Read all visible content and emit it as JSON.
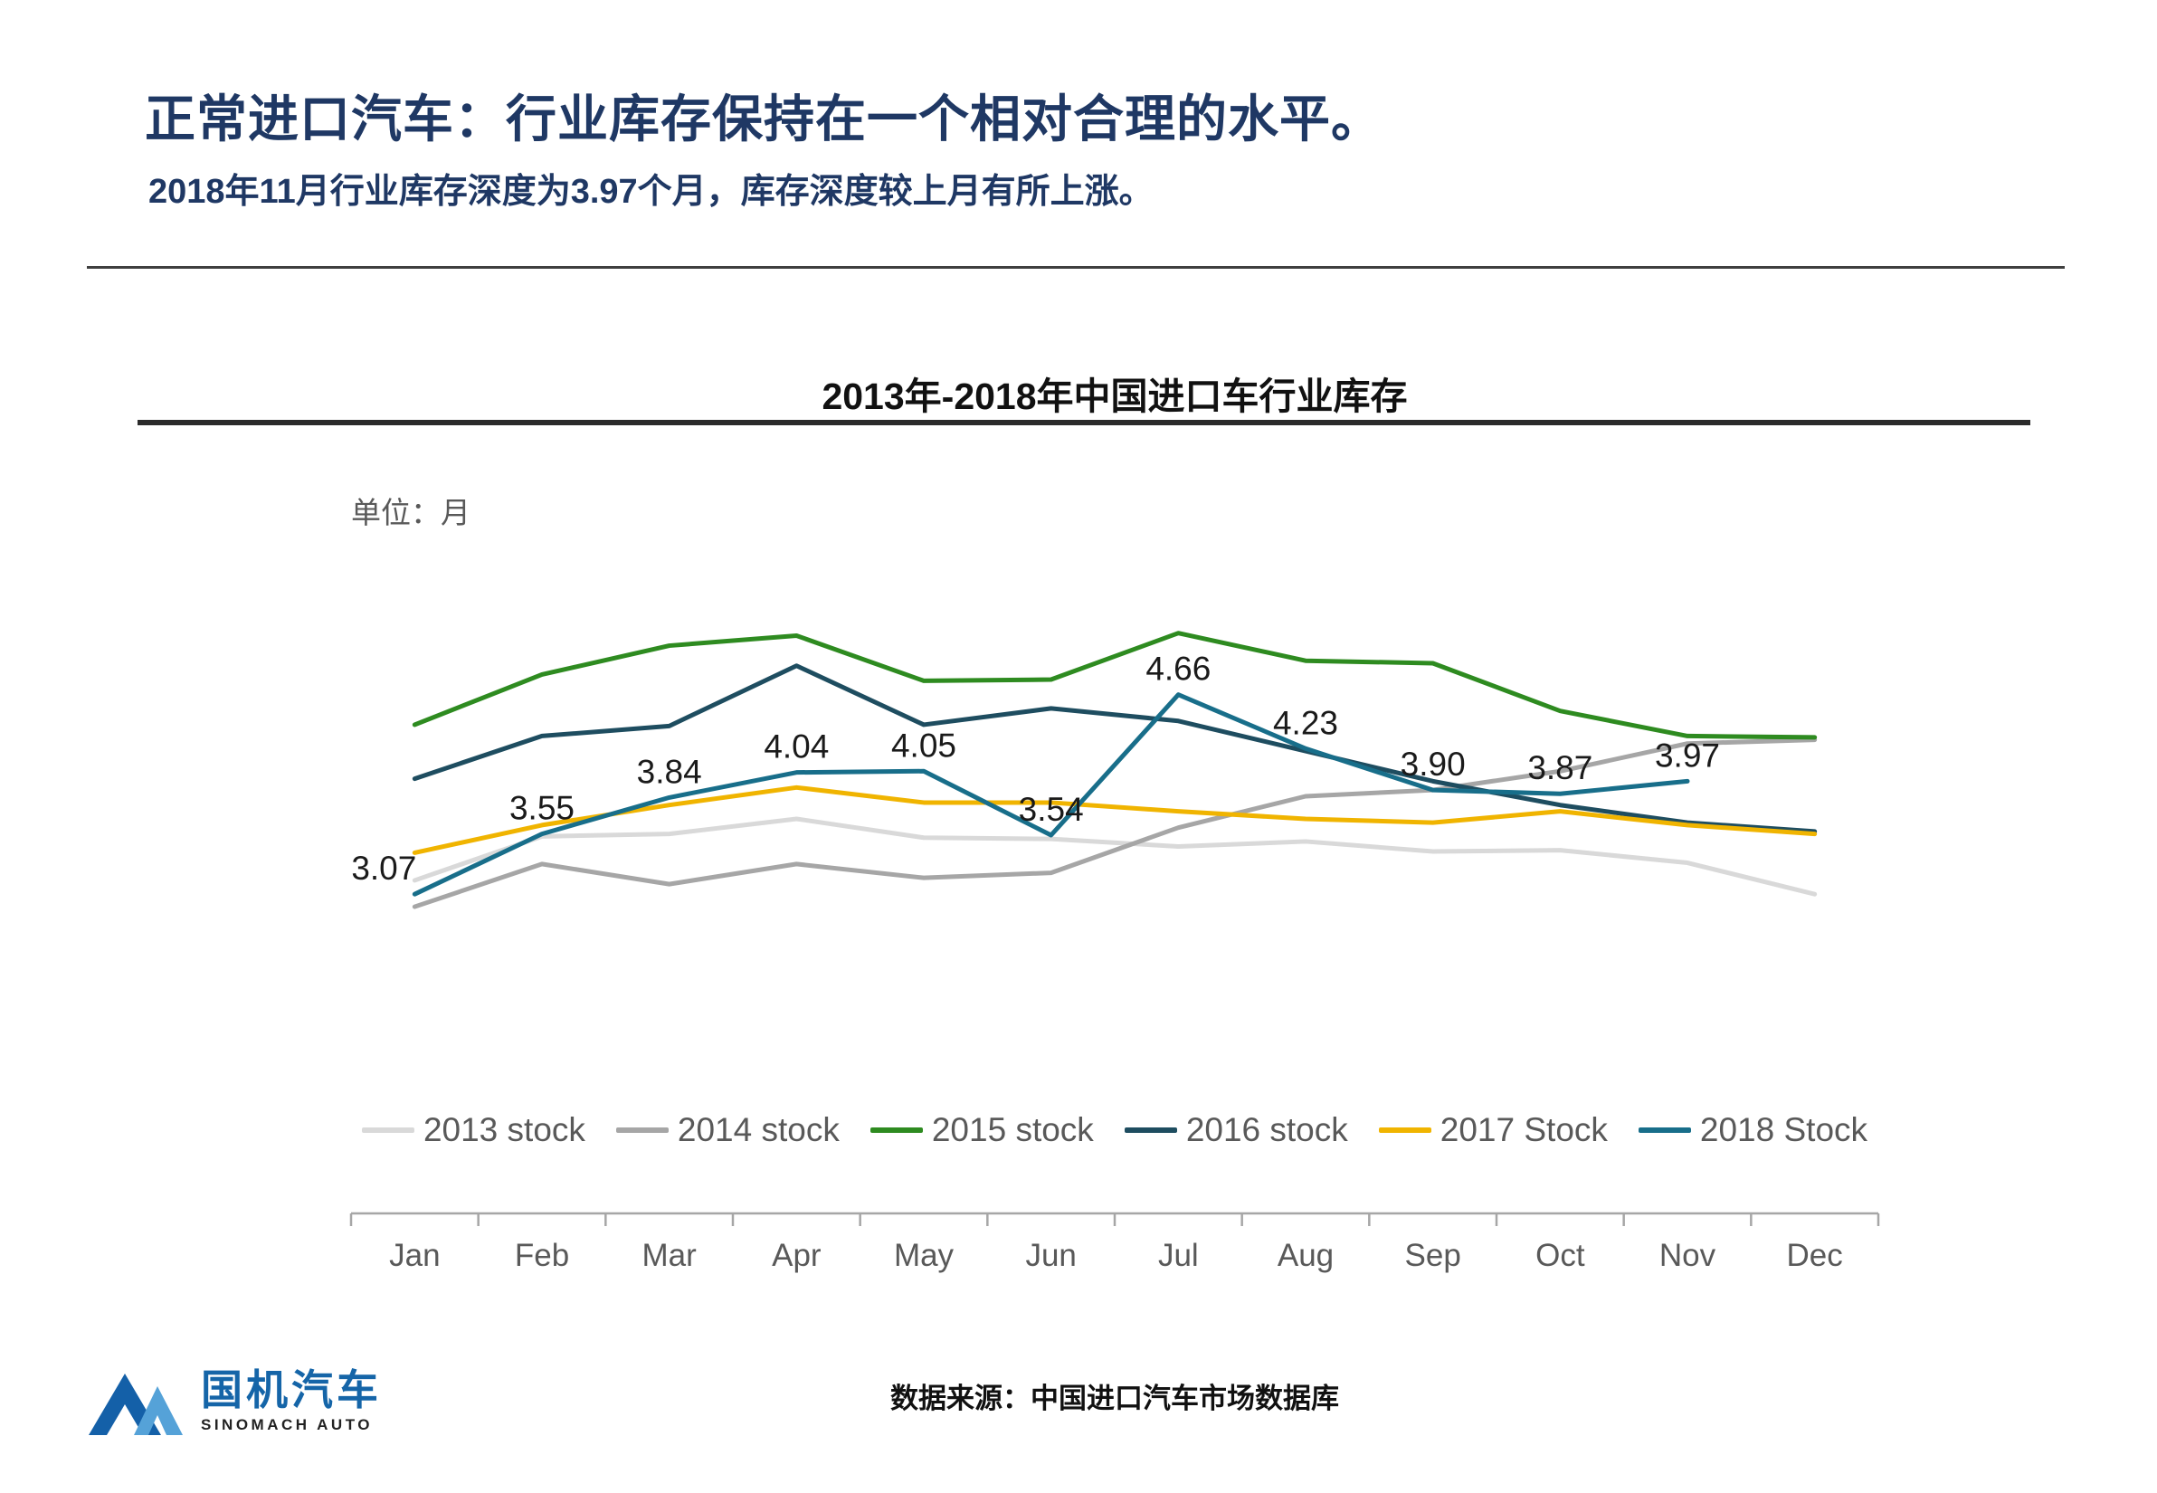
{
  "header": {
    "title": "正常进口汽车：行业库存保持在一个相对合理的水平。",
    "subtitle": "2018年11月行业库存深度为3.97个月，库存深度较上月有所上涨。"
  },
  "chart_data": {
    "type": "line",
    "title": "2013年-2018年中国进口车行业库存",
    "ylabel": "单位：月",
    "xlabel": "",
    "categories": [
      "Jan",
      "Feb",
      "Mar",
      "Apr",
      "May",
      "Jun",
      "Jul",
      "Aug",
      "Sep",
      "Oct",
      "Nov",
      "Dec"
    ],
    "series": [
      {
        "name": "2013 stock",
        "color": "#d9d9d9",
        "labeled": false,
        "values": [
          3.18,
          3.53,
          3.55,
          3.67,
          3.52,
          3.51,
          3.45,
          3.49,
          3.41,
          3.42,
          3.32,
          3.07
        ]
      },
      {
        "name": "2014 stock",
        "color": "#a6a6a6",
        "labeled": false,
        "values": [
          2.97,
          3.31,
          3.15,
          3.31,
          3.2,
          3.24,
          3.6,
          3.85,
          3.9,
          4.05,
          4.27,
          4.3
        ]
      },
      {
        "name": "2015 stock",
        "color": "#2e8b20",
        "labeled": false,
        "values": [
          4.42,
          4.82,
          5.05,
          5.13,
          4.77,
          4.78,
          5.15,
          4.93,
          4.91,
          4.53,
          4.33,
          4.32
        ]
      },
      {
        "name": "2016 stock",
        "color": "#1e4d60",
        "labeled": false,
        "values": [
          3.99,
          4.33,
          4.41,
          4.89,
          4.42,
          4.55,
          4.45,
          4.21,
          3.97,
          3.78,
          3.64,
          3.57
        ]
      },
      {
        "name": "2017 Stock",
        "color": "#f0b400",
        "labeled": false,
        "values": [
          3.4,
          3.62,
          3.78,
          3.92,
          3.8,
          3.8,
          3.73,
          3.67,
          3.64,
          3.73,
          3.62,
          3.55
        ]
      },
      {
        "name": "2018 Stock",
        "color": "#186e8a",
        "labeled": true,
        "values": [
          3.07,
          3.55,
          3.84,
          4.04,
          4.05,
          3.54,
          4.66,
          4.23,
          3.9,
          3.87,
          3.97
        ]
      }
    ],
    "ylim": [
      2.8,
      5.4
    ],
    "grid": false,
    "legend_position": "bottom"
  },
  "footer": {
    "source": "数据来源：中国进口汽车市场数据库",
    "logo_text": "国机汽车",
    "logo_subtext": "SINOMACH AUTO"
  }
}
